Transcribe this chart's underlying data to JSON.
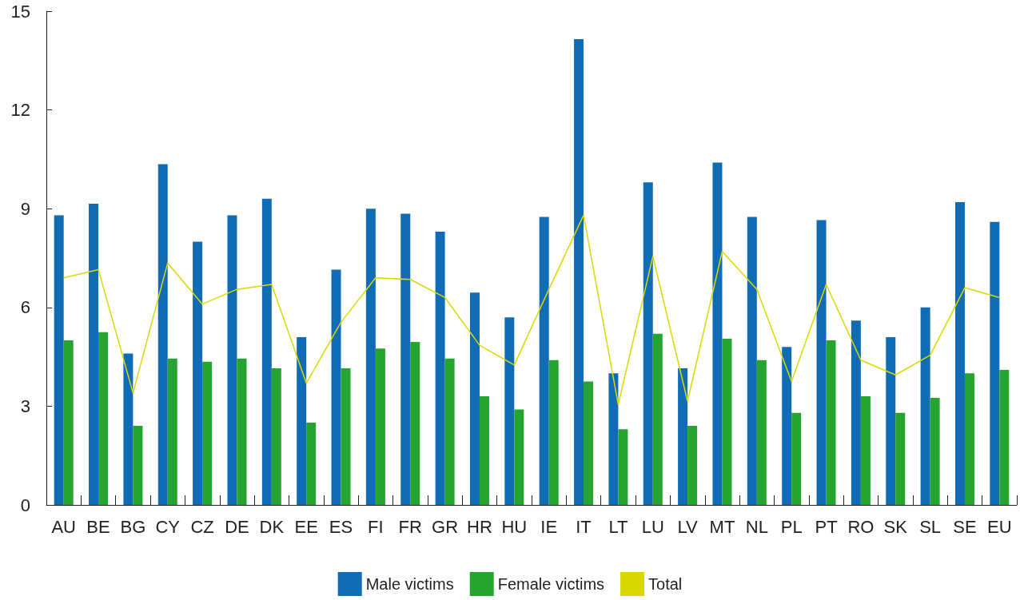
{
  "chart_data": {
    "type": "bar",
    "categories": [
      "AU",
      "BE",
      "BG",
      "CY",
      "CZ",
      "DE",
      "DK",
      "EE",
      "ES",
      "FI",
      "FR",
      "GR",
      "HR",
      "HU",
      "IE",
      "IT",
      "LT",
      "LU",
      "LV",
      "MT",
      "NL",
      "PL",
      "PT",
      "RO",
      "SK",
      "SL",
      "SE",
      "EU"
    ],
    "series": [
      {
        "name": "Male victims",
        "color": "#106cb4",
        "values": [
          8.8,
          9.15,
          4.6,
          10.35,
          8.0,
          8.8,
          9.3,
          5.1,
          7.15,
          9.0,
          8.85,
          8.3,
          6.45,
          5.7,
          8.75,
          14.15,
          4.0,
          9.8,
          4.15,
          10.4,
          8.75,
          4.8,
          8.65,
          5.6,
          5.1,
          6.0,
          9.2,
          8.6
        ]
      },
      {
        "name": "Female victims",
        "color": "#25a52f",
        "values": [
          5.0,
          5.25,
          2.4,
          4.45,
          4.35,
          4.45,
          4.15,
          2.5,
          4.15,
          4.75,
          4.95,
          4.45,
          3.3,
          2.9,
          4.4,
          3.75,
          2.3,
          5.2,
          2.4,
          5.05,
          4.4,
          2.8,
          5.0,
          3.3,
          2.8,
          3.25,
          4.0,
          4.1
        ]
      },
      {
        "name": "Total",
        "type": "line",
        "color": "#d9d900",
        "values": [
          6.9,
          7.15,
          3.4,
          7.35,
          6.1,
          6.55,
          6.7,
          3.7,
          5.55,
          6.9,
          6.85,
          6.3,
          4.85,
          4.25,
          6.55,
          8.8,
          3.05,
          7.55,
          3.15,
          7.7,
          6.55,
          3.75,
          6.7,
          4.4,
          3.95,
          4.55,
          6.6,
          6.3
        ]
      }
    ],
    "ylim": [
      0,
      15
    ],
    "yticks": [
      0,
      3,
      6,
      9,
      12,
      15
    ],
    "grid": false,
    "legend": "bottom",
    "marker": "none",
    "line_style": "solid"
  }
}
